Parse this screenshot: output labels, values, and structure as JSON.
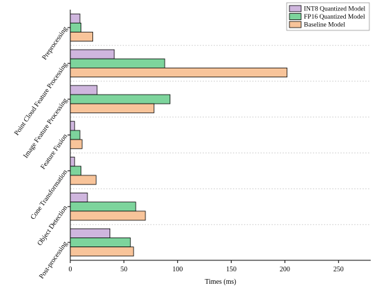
{
  "chart_data": {
    "type": "bar",
    "orientation": "horizontal",
    "categories": [
      "Preprocessing",
      "Point Cloud Feature Processing",
      "Image Feature Processing",
      "Feature Fusion",
      "Cone Transformation",
      "Object Detection",
      "Post-processing"
    ],
    "series": [
      {
        "name": "INT8 Quantized Model",
        "color": "#CFB6DE",
        "values": [
          9,
          41,
          25,
          4,
          4,
          16,
          37
        ]
      },
      {
        "name": "FP16 Quantized Model",
        "color": "#7DD49C",
        "values": [
          10,
          88,
          93,
          9,
          10,
          61,
          56
        ]
      },
      {
        "name": "Baseline Model",
        "color": "#F8C49A",
        "values": [
          21,
          202,
          78,
          11,
          24,
          70,
          59
        ]
      }
    ],
    "xlabel": "Times (ms)",
    "ylabel": "",
    "xlim": [
      0,
      280
    ],
    "xticks": [
      0,
      50,
      100,
      150,
      200,
      250
    ],
    "grid": "horizontal dashed separators",
    "legend_position": "top-right"
  }
}
